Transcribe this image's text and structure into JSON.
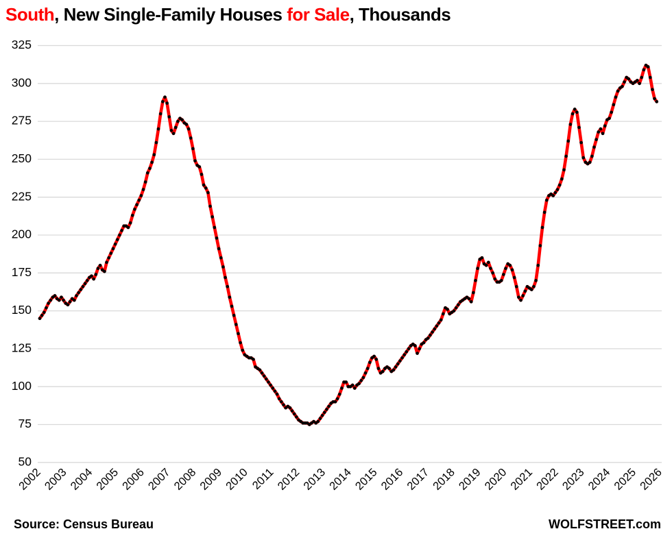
{
  "title": {
    "segments": [
      {
        "text": "South",
        "color": "#FF0000"
      },
      {
        "text": ", New Single-Family Houses ",
        "color": "#000000"
      },
      {
        "text": "for Sale",
        "color": "#FF0000"
      },
      {
        "text": ", Thousands",
        "color": "#000000"
      }
    ]
  },
  "footer": {
    "source": "Source: Census Bureau",
    "brand": "WOLFSTREET.com"
  },
  "chart_data": {
    "type": "line",
    "title": "South, New Single-Family Houses for Sale, Thousands",
    "unit": "thousands of houses",
    "frequency": "monthly",
    "start": "2002-01",
    "end": "2025-11",
    "ylim": [
      50,
      325
    ],
    "y_ticks": [
      50,
      75,
      100,
      125,
      150,
      175,
      200,
      225,
      250,
      275,
      300,
      325
    ],
    "x_ticks": [
      2002,
      2003,
      2004,
      2005,
      2006,
      2007,
      2008,
      2009,
      2010,
      2011,
      2012,
      2013,
      2014,
      2015,
      2016,
      2017,
      2018,
      2019,
      2020,
      2021,
      2022,
      2023,
      2024,
      2025,
      2026
    ],
    "grid": "horizontal-only",
    "legend": "none",
    "line_color": "#FF0000",
    "marker_color": "#000000",
    "grid_color": "#d9d9d9",
    "series": [
      {
        "name": "New single-family houses for sale, South",
        "values": [
          145,
          147,
          149,
          152,
          155,
          157,
          159,
          160,
          158,
          157,
          159,
          157,
          155,
          154,
          156,
          158,
          157,
          160,
          162,
          164,
          166,
          168,
          170,
          172,
          173,
          171,
          174,
          178,
          180,
          177,
          176,
          182,
          185,
          188,
          191,
          194,
          197,
          200,
          203,
          206,
          206,
          205,
          208,
          213,
          217,
          220,
          223,
          226,
          230,
          235,
          241,
          244,
          248,
          253,
          261,
          270,
          280,
          288,
          291,
          287,
          278,
          269,
          267,
          271,
          275,
          277,
          276,
          274,
          273,
          270,
          264,
          257,
          249,
          246,
          245,
          240,
          233,
          231,
          228,
          219,
          212,
          205,
          198,
          191,
          185,
          179,
          172,
          166,
          159,
          153,
          147,
          141,
          135,
          129,
          124,
          121,
          120,
          119,
          119,
          118,
          113,
          112,
          111,
          109,
          107,
          105,
          103,
          101,
          99,
          97,
          95,
          92,
          90,
          88,
          86,
          87,
          86,
          84,
          82,
          80,
          78,
          77,
          76,
          76,
          76,
          75,
          76,
          77,
          76,
          77,
          79,
          81,
          83,
          85,
          87,
          89,
          90,
          90,
          92,
          95,
          99,
          103,
          103,
          100,
          100,
          101,
          99,
          101,
          102,
          104,
          106,
          109,
          112,
          116,
          119,
          120,
          118,
          112,
          109,
          110,
          112,
          113,
          112,
          110,
          111,
          113,
          115,
          117,
          119,
          121,
          123,
          125,
          127,
          128,
          127,
          122,
          125,
          128,
          129,
          131,
          132,
          134,
          136,
          138,
          140,
          142,
          144,
          148,
          152,
          151,
          148,
          149,
          150,
          152,
          154,
          156,
          157,
          158,
          159,
          158,
          156,
          162,
          170,
          178,
          184,
          185,
          181,
          180,
          182,
          178,
          175,
          171,
          169,
          169,
          170,
          174,
          178,
          181,
          180,
          177,
          172,
          166,
          159,
          157,
          160,
          163,
          166,
          165,
          164,
          166,
          170,
          180,
          193,
          205,
          215,
          223,
          226,
          227,
          226,
          228,
          230,
          233,
          237,
          243,
          252,
          262,
          273,
          280,
          283,
          281,
          271,
          261,
          251,
          248,
          247,
          248,
          252,
          258,
          263,
          268,
          270,
          267,
          272,
          276,
          277,
          281,
          286,
          291,
          295,
          297,
          298,
          301,
          304,
          303,
          301,
          300,
          301,
          302,
          300,
          304,
          309,
          312,
          311,
          304,
          296,
          290,
          288
        ]
      }
    ]
  }
}
